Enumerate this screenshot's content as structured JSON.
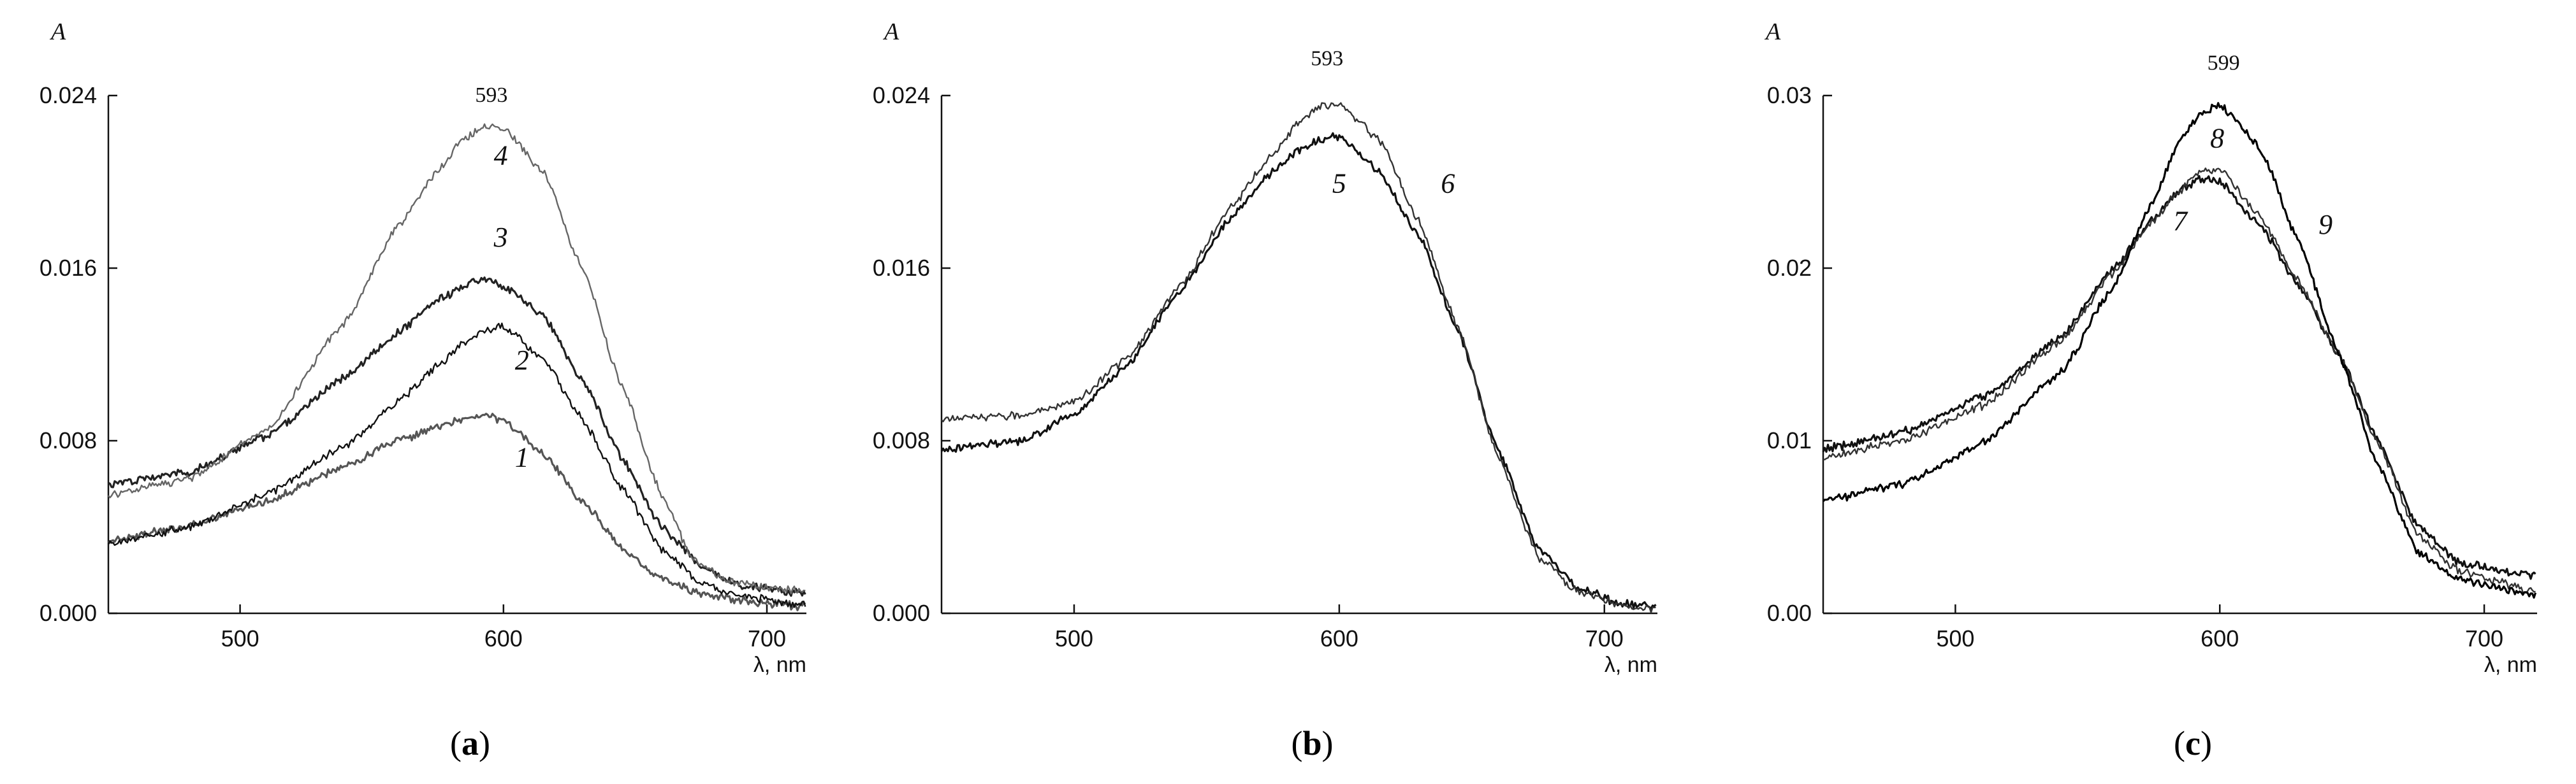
{
  "chart_data": [
    {
      "type": "line",
      "panel": "a",
      "panel_label": "a",
      "ylabel": "A",
      "xlabel": "λ, nm",
      "xlim": [
        450,
        715
      ],
      "ylim": [
        0,
        0.024
      ],
      "xticks": [
        500,
        600,
        700
      ],
      "xtick_labels": [
        "500",
        "600",
        "700"
      ],
      "yticks": [
        0,
        0.008,
        0.016,
        0.024
      ],
      "ytick_labels": [
        "0.000",
        "0.008",
        "0.016",
        "0.024"
      ],
      "annotations": [
        {
          "text": "593",
          "x": 593,
          "y": 0.0237
        }
      ],
      "series": [
        {
          "name": "1",
          "color": "#555555",
          "x": [
            450,
            480,
            510,
            540,
            560,
            575,
            585,
            593,
            600,
            615,
            630,
            645,
            660,
            675,
            690,
            715
          ],
          "values": [
            0.0034,
            0.004,
            0.0052,
            0.0068,
            0.008,
            0.0086,
            0.009,
            0.0093,
            0.0089,
            0.0074,
            0.0052,
            0.003,
            0.0016,
            0.0009,
            0.0006,
            0.0003
          ],
          "label_pos": {
            "x": 607,
            "y": 0.0068
          }
        },
        {
          "name": "2",
          "color": "#111111",
          "x": [
            450,
            480,
            510,
            540,
            560,
            575,
            585,
            593,
            600,
            615,
            630,
            645,
            660,
            675,
            690,
            715
          ],
          "values": [
            0.0032,
            0.004,
            0.0055,
            0.0078,
            0.0098,
            0.0115,
            0.0125,
            0.0131,
            0.0133,
            0.0118,
            0.009,
            0.0058,
            0.003,
            0.0014,
            0.0008,
            0.0004
          ],
          "label_pos": {
            "x": 607,
            "y": 0.0113
          }
        },
        {
          "name": "3",
          "color": "#222222",
          "x": [
            450,
            480,
            510,
            540,
            560,
            575,
            585,
            593,
            600,
            615,
            630,
            645,
            660,
            675,
            690,
            715
          ],
          "values": [
            0.006,
            0.0065,
            0.0082,
            0.011,
            0.013,
            0.0145,
            0.0152,
            0.0155,
            0.0152,
            0.0138,
            0.0108,
            0.0072,
            0.004,
            0.0022,
            0.0013,
            0.0009
          ],
          "label_pos": {
            "x": 599,
            "y": 0.017
          }
        },
        {
          "name": "4",
          "color": "#666666",
          "x": [
            450,
            480,
            510,
            540,
            560,
            575,
            585,
            593,
            600,
            615,
            630,
            645,
            660,
            672,
            685,
            700,
            715
          ],
          "values": [
            0.0055,
            0.0062,
            0.0085,
            0.0135,
            0.018,
            0.0205,
            0.022,
            0.0226,
            0.0225,
            0.0205,
            0.016,
            0.0105,
            0.0055,
            0.0025,
            0.0015,
            0.0012,
            0.001
          ],
          "label_pos": {
            "x": 599,
            "y": 0.0208
          }
        }
      ]
    },
    {
      "type": "line",
      "panel": "b",
      "panel_label": "b",
      "ylabel": "A",
      "xlabel": "λ, nm",
      "xlim": [
        450,
        720
      ],
      "ylim": [
        0,
        0.024
      ],
      "xticks": [
        500,
        600,
        700
      ],
      "xtick_labels": [
        "500",
        "600",
        "700"
      ],
      "yticks": [
        0,
        0.008,
        0.016,
        0.024
      ],
      "ytick_labels": [
        "0.000",
        "0.008",
        "0.016",
        "0.024"
      ],
      "annotations": [
        {
          "text": "593",
          "x": 593,
          "y": 0.0254
        }
      ],
      "series": [
        {
          "name": "5",
          "color": "#111111",
          "x": [
            450,
            480,
            500,
            520,
            540,
            560,
            575,
            585,
            593,
            600,
            615,
            630,
            645,
            660,
            675,
            690,
            705,
            720
          ],
          "values": [
            0.0076,
            0.008,
            0.0092,
            0.0115,
            0.015,
            0.0185,
            0.0205,
            0.0215,
            0.022,
            0.0221,
            0.0205,
            0.0175,
            0.013,
            0.0075,
            0.003,
            0.0012,
            0.0005,
            0.0003
          ],
          "label_pos": {
            "x": 600,
            "y": 0.0195
          }
        },
        {
          "name": "6",
          "color": "#333333",
          "x": [
            450,
            480,
            500,
            520,
            540,
            560,
            575,
            585,
            593,
            600,
            615,
            630,
            645,
            660,
            675,
            690,
            705,
            720
          ],
          "values": [
            0.009,
            0.0092,
            0.0098,
            0.0118,
            0.0152,
            0.019,
            0.0213,
            0.0228,
            0.0235,
            0.0236,
            0.022,
            0.0182,
            0.0132,
            0.0072,
            0.0026,
            0.001,
            0.0004,
            0.0002
          ],
          "label_pos": {
            "x": 641,
            "y": 0.0195
          }
        }
      ]
    },
    {
      "type": "line",
      "panel": "c",
      "panel_label": "c",
      "ylabel": "A",
      "xlabel": "λ, nm",
      "xlim": [
        450,
        720
      ],
      "ylim": [
        0,
        0.03
      ],
      "xticks": [
        500,
        600,
        700
      ],
      "xtick_labels": [
        "500",
        "600",
        "700"
      ],
      "yticks": [
        0,
        0.01,
        0.02,
        0.03
      ],
      "ytick_labels": [
        "0.00",
        "0.01",
        "0.02",
        "0.03"
      ],
      "annotations": [
        {
          "text": "599",
          "x": 599,
          "y": 0.0315
        }
      ],
      "series": [
        {
          "name": "7",
          "color": "#111111",
          "x": [
            450,
            480,
            510,
            540,
            560,
            575,
            585,
            593,
            600,
            615,
            630,
            645,
            660,
            675,
            690,
            705,
            720
          ],
          "values": [
            0.0095,
            0.0105,
            0.0125,
            0.016,
            0.02,
            0.023,
            0.0245,
            0.0252,
            0.025,
            0.0225,
            0.019,
            0.015,
            0.01,
            0.005,
            0.003,
            0.0025,
            0.0022
          ],
          "label_pos": {
            "x": 585,
            "y": 0.0222
          }
        },
        {
          "name": "8",
          "color": "#333333",
          "x": [
            450,
            480,
            510,
            540,
            560,
            575,
            585,
            593,
            600,
            615,
            630,
            645,
            660,
            675,
            690,
            705,
            720
          ],
          "values": [
            0.009,
            0.01,
            0.012,
            0.0158,
            0.0198,
            0.0228,
            0.0245,
            0.0256,
            0.0258,
            0.023,
            0.0192,
            0.015,
            0.0098,
            0.0045,
            0.0025,
            0.0018,
            0.0012
          ],
          "label_pos": {
            "x": 599,
            "y": 0.027
          }
        },
        {
          "name": "9",
          "color": "#000000",
          "x": [
            450,
            480,
            510,
            540,
            560,
            575,
            585,
            593,
            600,
            615,
            630,
            645,
            660,
            675,
            690,
            705,
            720
          ],
          "values": [
            0.0065,
            0.0075,
            0.0098,
            0.014,
            0.019,
            0.024,
            0.0275,
            0.029,
            0.0295,
            0.027,
            0.0215,
            0.015,
            0.0085,
            0.0035,
            0.002,
            0.0015,
            0.001
          ],
          "label_pos": {
            "x": 640,
            "y": 0.022
          }
        }
      ]
    }
  ]
}
